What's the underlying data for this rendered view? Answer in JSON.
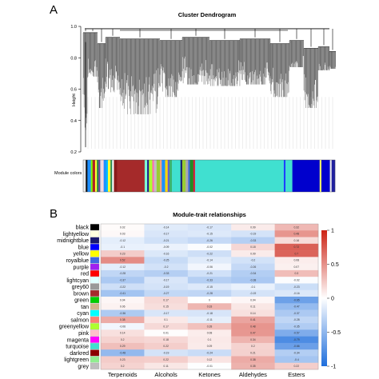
{
  "panel_a": {
    "letter": "A"
  },
  "panel_b": {
    "letter": "B"
  },
  "chart_data": [
    {
      "type": "dendrogram",
      "title": "Cluster Dendrogram",
      "ylabel": "Height",
      "ylim": [
        0.2,
        1.0
      ],
      "yticks": [
        "0.2",
        "0.4",
        "0.6",
        "0.8",
        "1.0"
      ],
      "color_bar_label": "Module colors",
      "module_color_segments": [
        {
          "color": "#e8e8e8",
          "w": 1.5
        },
        {
          "color": "#111111",
          "w": 1
        },
        {
          "color": "#1e90ff",
          "w": 2
        },
        {
          "color": "#7cfc00",
          "w": 1
        },
        {
          "color": "#b22222",
          "w": 1.5
        },
        {
          "color": "#ffff33",
          "w": 1
        },
        {
          "color": "#2f8f3f",
          "w": 1
        },
        {
          "color": "#6b3fa0",
          "w": 1
        },
        {
          "color": "#e0e0e0",
          "w": 1
        },
        {
          "color": "#ffd1dc",
          "w": 1
        },
        {
          "color": "#1e90ff",
          "w": 1.5
        },
        {
          "color": "#00bfff",
          "w": 1
        },
        {
          "color": "#ffff33",
          "w": 1.5
        },
        {
          "color": "#2e8b57",
          "w": 1
        },
        {
          "color": "#ffffff",
          "w": 1
        },
        {
          "color": "#8b1a1a",
          "w": 2
        },
        {
          "color": "#a52a2a",
          "w": 16
        },
        {
          "color": "#7fffd4",
          "w": 1.5
        },
        {
          "color": "#1c1c8c",
          "w": 1
        },
        {
          "color": "#adff2f",
          "w": 2
        },
        {
          "color": "#ff69b4",
          "w": 1
        },
        {
          "color": "#c0c0c0",
          "w": 1.5
        },
        {
          "color": "#9acd32",
          "w": 2
        },
        {
          "color": "#ffa07a",
          "w": 1
        },
        {
          "color": "#1e90ff",
          "w": 2
        },
        {
          "color": "#ffd700",
          "w": 1.5
        },
        {
          "color": "#6a5acd",
          "w": 1
        },
        {
          "color": "#3cb371",
          "w": 1.5
        },
        {
          "color": "#40e0d0",
          "w": 5
        },
        {
          "color": "#191970",
          "w": 1
        },
        {
          "color": "#9acd32",
          "w": 2
        },
        {
          "color": "#a9a9a9",
          "w": 1.5
        },
        {
          "color": "#4169e1",
          "w": 1
        },
        {
          "color": "#228b22",
          "w": 2
        },
        {
          "color": "#dc143c",
          "w": 1
        },
        {
          "color": "#40e0d0",
          "w": 52
        },
        {
          "color": "#1e40ff",
          "w": 1
        },
        {
          "color": "#40e0d0",
          "w": 4
        },
        {
          "color": "#0000cd",
          "w": 16
        },
        {
          "color": "#ffff66",
          "w": 1
        },
        {
          "color": "#0000cd",
          "w": 5
        },
        {
          "color": "#e8e8e8",
          "w": 1
        },
        {
          "color": "#2020a0",
          "w": 2
        }
      ]
    },
    {
      "type": "heatmap",
      "title": "Module-trait relationships",
      "columns": [
        "Terpenoids",
        "Alcohols",
        "Ketones",
        "Aldehydes",
        "Esters"
      ],
      "rows": [
        {
          "name": "black",
          "swatch": "#000000"
        },
        {
          "name": "lightyellow",
          "swatch": "#ffffe0"
        },
        {
          "name": "midnightblue",
          "swatch": "#191970"
        },
        {
          "name": "blue",
          "swatch": "#0000ff"
        },
        {
          "name": "yellow",
          "swatch": "#ffff00"
        },
        {
          "name": "royalblue",
          "swatch": "#4169e1"
        },
        {
          "name": "purple",
          "swatch": "#a020f0"
        },
        {
          "name": "red",
          "swatch": "#ff0000"
        },
        {
          "name": "lightcyan",
          "swatch": "#e0ffff"
        },
        {
          "name": "grey60",
          "swatch": "#999999"
        },
        {
          "name": "brown",
          "swatch": "#a52a2a"
        },
        {
          "name": "green",
          "swatch": "#00cd00"
        },
        {
          "name": "tan",
          "swatch": "#d2b48c"
        },
        {
          "name": "cyan",
          "swatch": "#00ffff"
        },
        {
          "name": "salmon",
          "swatch": "#fa8072"
        },
        {
          "name": "greenyellow",
          "swatch": "#adff2f"
        },
        {
          "name": "pink",
          "swatch": "#ffc0cb"
        },
        {
          "name": "magenta",
          "swatch": "#ff00ff"
        },
        {
          "name": "turquoise",
          "swatch": "#40e0d0"
        },
        {
          "name": "darkred",
          "swatch": "#8b0000"
        },
        {
          "name": "lightgreen",
          "swatch": "#90ee90"
        },
        {
          "name": "grey",
          "swatch": "#bebebe"
        }
      ],
      "values": [
        [
          0.02,
          -0.14,
          -0.17,
          0.09,
          0.32
        ],
        [
          0.03,
          -0.17,
          -0.15,
          -0.19,
          0.48
        ],
        [
          -0.12,
          -0.21,
          -0.26,
          -0.33,
          0.16
        ],
        [
          -0.1,
          -0.09,
          -0.02,
          0.18,
          0.72
        ],
        [
          0.23,
          -0.16,
          -0.22,
          0.09,
          0.7
        ],
        [
          0.52,
          -0.25,
          -0.14,
          -0.2,
          0.08
        ],
        [
          -0.12,
          -0.2,
          -0.06,
          -0.26,
          0.07
        ],
        [
          -0.28,
          -0.33,
          -0.21,
          -0.34,
          0.3
        ],
        [
          -0.37,
          -0.17,
          -0.33,
          -0.38,
          -0.02
        ],
        [
          -0.22,
          -0.19,
          -0.15,
          -0.1,
          -0.23
        ],
        [
          -0.41,
          -0.27,
          -0.28,
          -0.19,
          -0.16
        ],
        [
          0.04,
          0.17,
          0.0,
          0.04,
          -0.65
        ],
        [
          0.06,
          0.15,
          0.33,
          0.11,
          -0.47
        ],
        [
          -0.36,
          -0.17,
          -0.18,
          0.14,
          -0.37
        ],
        [
          0.38,
          0.1,
          -0.11,
          0.41,
          -0.28
        ],
        [
          -0.06,
          0.17,
          0.28,
          0.48,
          -0.35
        ],
        [
          0.14,
          0.01,
          0.08,
          0.47,
          -0.57
        ],
        [
          0.2,
          0.18,
          0.1,
          0.34,
          -0.79
        ],
        [
          0.29,
          0.22,
          0.09,
          0.2,
          -0.66
        ],
        [
          -0.48,
          -0.19,
          -0.24,
          0.21,
          -0.34
        ],
        [
          0.23,
          0.22,
          0.12,
          0.38,
          -0.4
        ],
        [
          0.2,
          0.11,
          -0.01,
          0.35,
          0.22
        ]
      ],
      "colorbar": {
        "range": [
          -1,
          1
        ],
        "ticks": [
          "1",
          "0.5",
          "0",
          "-0.5",
          "-1"
        ]
      }
    }
  ]
}
